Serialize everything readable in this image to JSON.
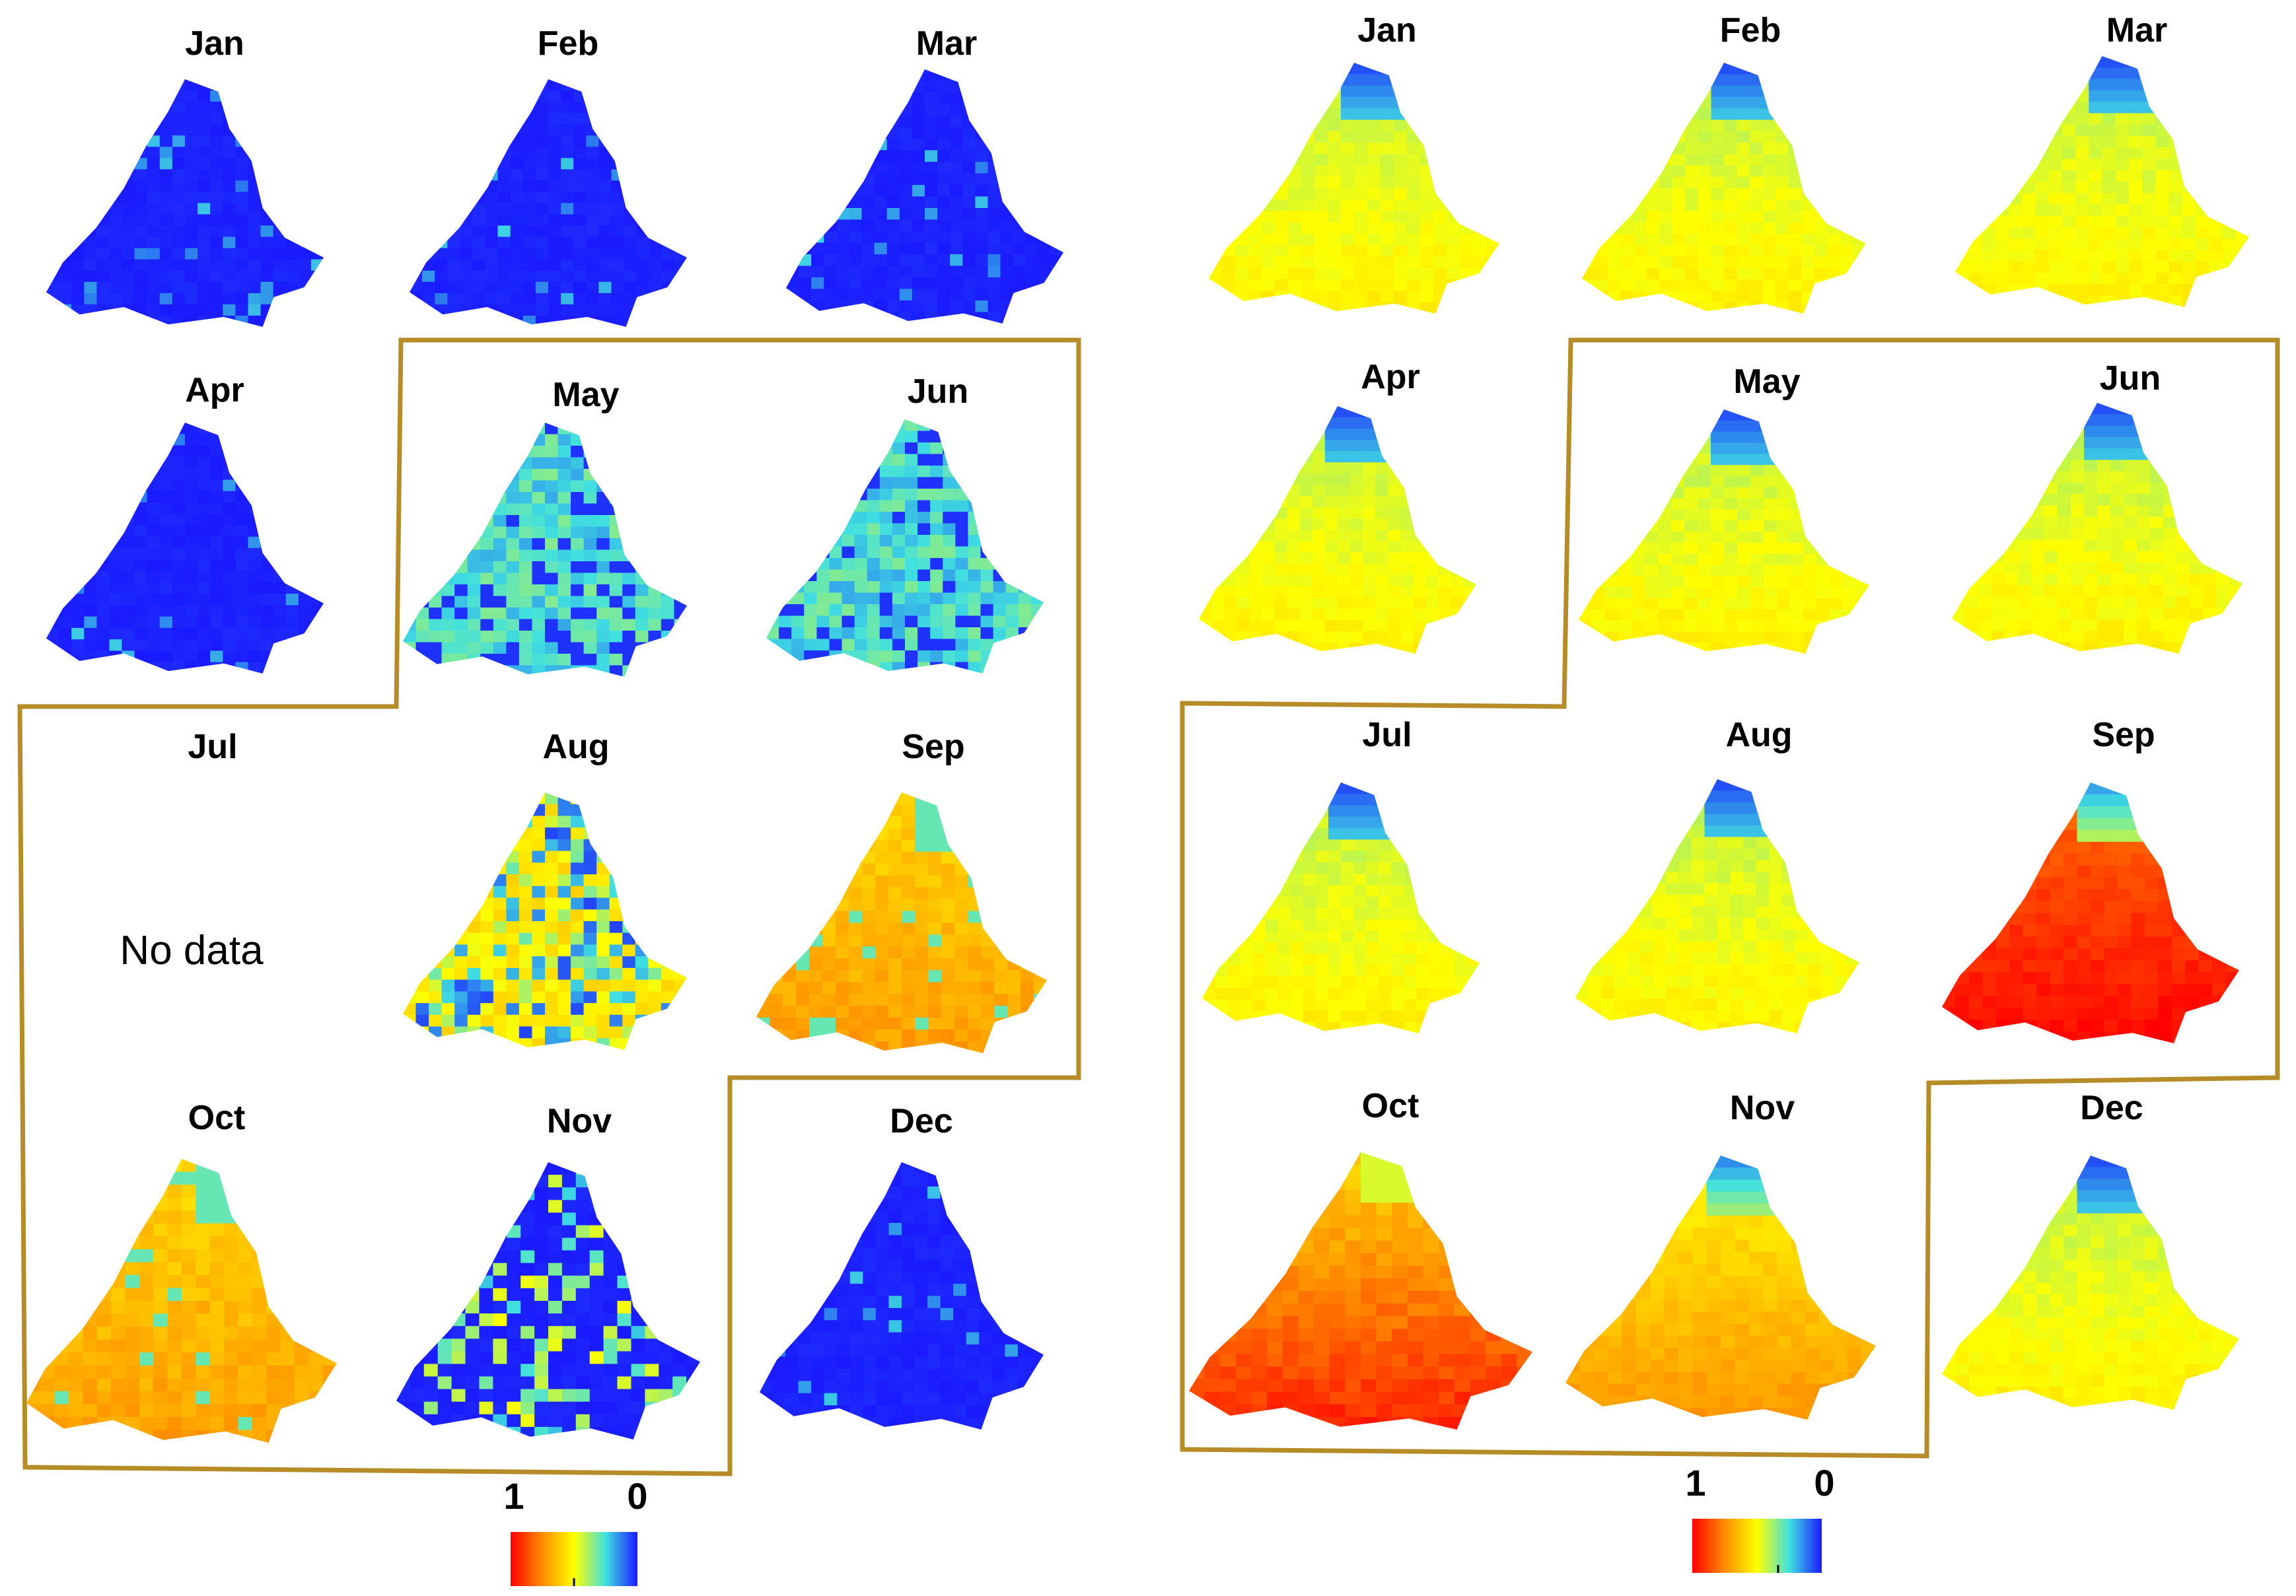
{
  "figure": {
    "left_panel": {
      "months": [
        {
          "label": "Jan",
          "colour": "#1a1aff",
          "scheme": "blue"
        },
        {
          "label": "Feb",
          "colour": "#1a1aff",
          "scheme": "blue"
        },
        {
          "label": "Mar",
          "colour": "#1a1aff",
          "scheme": "blue"
        },
        {
          "label": "Apr",
          "colour": "#1a1aff",
          "scheme": "blue"
        },
        {
          "label": "May",
          "colour": "#3fa0ff",
          "scheme": "cyanblue"
        },
        {
          "label": "Jun",
          "colour": "#40d8ff",
          "scheme": "cyanblue"
        },
        {
          "label": "Jul",
          "colour": "",
          "scheme": "none"
        },
        {
          "label": "Aug",
          "colour": "#f0f03a",
          "scheme": "mixed"
        },
        {
          "label": "Sep",
          "colour": "#ffc21a",
          "scheme": "orange"
        },
        {
          "label": "Oct",
          "colour": "#ffc21a",
          "scheme": "orange"
        },
        {
          "label": "Nov",
          "colour": "#1a1aff",
          "scheme": "bluemix"
        },
        {
          "label": "Dec",
          "colour": "#1a1aff",
          "scheme": "blue"
        }
      ],
      "no_data_text": "No data",
      "legend": {
        "high_label": "1",
        "low_label": "0"
      }
    },
    "right_panel": {
      "months": [
        {
          "label": "Jan",
          "colour": "#c8ee55",
          "scheme": "gradient"
        },
        {
          "label": "Feb",
          "colour": "#d9f25a",
          "scheme": "gradient"
        },
        {
          "label": "Mar",
          "colour": "#f2f040",
          "scheme": "gradient"
        },
        {
          "label": "Apr",
          "colour": "#e6f24d",
          "scheme": "gradient"
        },
        {
          "label": "May",
          "colour": "#d2f060",
          "scheme": "gradient"
        },
        {
          "label": "Jun",
          "colour": "#cdef60",
          "scheme": "gradient"
        },
        {
          "label": "Jul",
          "colour": "#b5ea77",
          "scheme": "gradient"
        },
        {
          "label": "Aug",
          "colour": "#d5ef58",
          "scheme": "gradient"
        },
        {
          "label": "Sep",
          "colour": "#ee2a10",
          "scheme": "red"
        },
        {
          "label": "Oct",
          "colour": "#f6681a",
          "scheme": "redorange"
        },
        {
          "label": "Nov",
          "colour": "#f8d030",
          "scheme": "yelloworange"
        },
        {
          "label": "Dec",
          "colour": "#dff050",
          "scheme": "gradient"
        }
      ],
      "legend": {
        "high_label": "1",
        "low_label": "0"
      }
    },
    "colormap": [
      "#ff0000",
      "#ff8c00",
      "#ffff00",
      "#40e0e0",
      "#1a1aff"
    ],
    "frame_colour": "#b58c28"
  }
}
